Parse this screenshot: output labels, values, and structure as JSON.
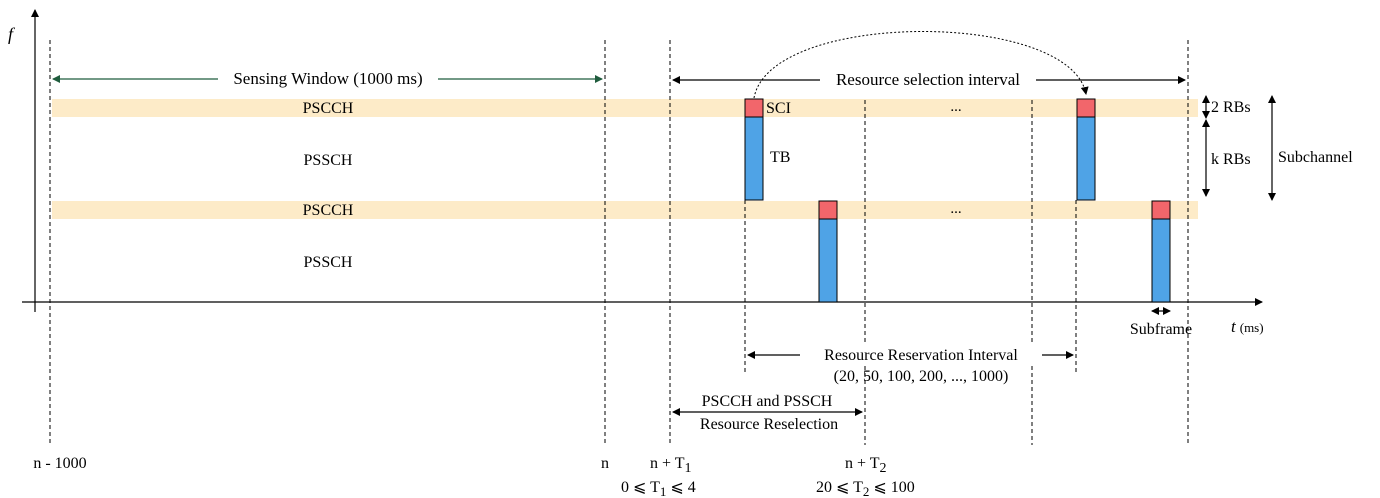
{
  "axes": {
    "y_label": "f",
    "x_label": "t",
    "x_unit": "(ms)"
  },
  "windows": {
    "sensing": "Sensing Window (1000 ms)",
    "selection": "Resource selection interval"
  },
  "channels": {
    "pscch": "PSCCH",
    "pssch": "PSSCH"
  },
  "block_labels": {
    "sci": "SCI",
    "tb": "TB",
    "ellipsis": "..."
  },
  "sizes": {
    "two_rbs": "2 RBs",
    "k_rbs": "k RBs",
    "subchannel": "Subchannel",
    "subframe": "Subframe"
  },
  "reservation": {
    "line1": "Resource Reservation Interval",
    "line2": "(20, 50, 100, 200, ..., 1000)"
  },
  "reselection": {
    "line1": "PSCCH and PSSCH",
    "line2": "Resource Reselection"
  },
  "time_marks": {
    "n_minus_1000": "n - 1000",
    "n": "n",
    "n_plus": "n + T",
    "t1_sub": "1",
    "t2_sub": "2",
    "t1_cond_a": "0 ⩽ T",
    "t1_cond_b": " ⩽ 4",
    "t2_cond_a": "20 ⩽ T",
    "t2_cond_b": " ⩽ 100"
  },
  "colors": {
    "band": "#fdebc8",
    "sci": "#f2666b",
    "tb": "#4fa3e6",
    "sensing_arrow": "#1f5c3d",
    "stroke": "#000000"
  }
}
